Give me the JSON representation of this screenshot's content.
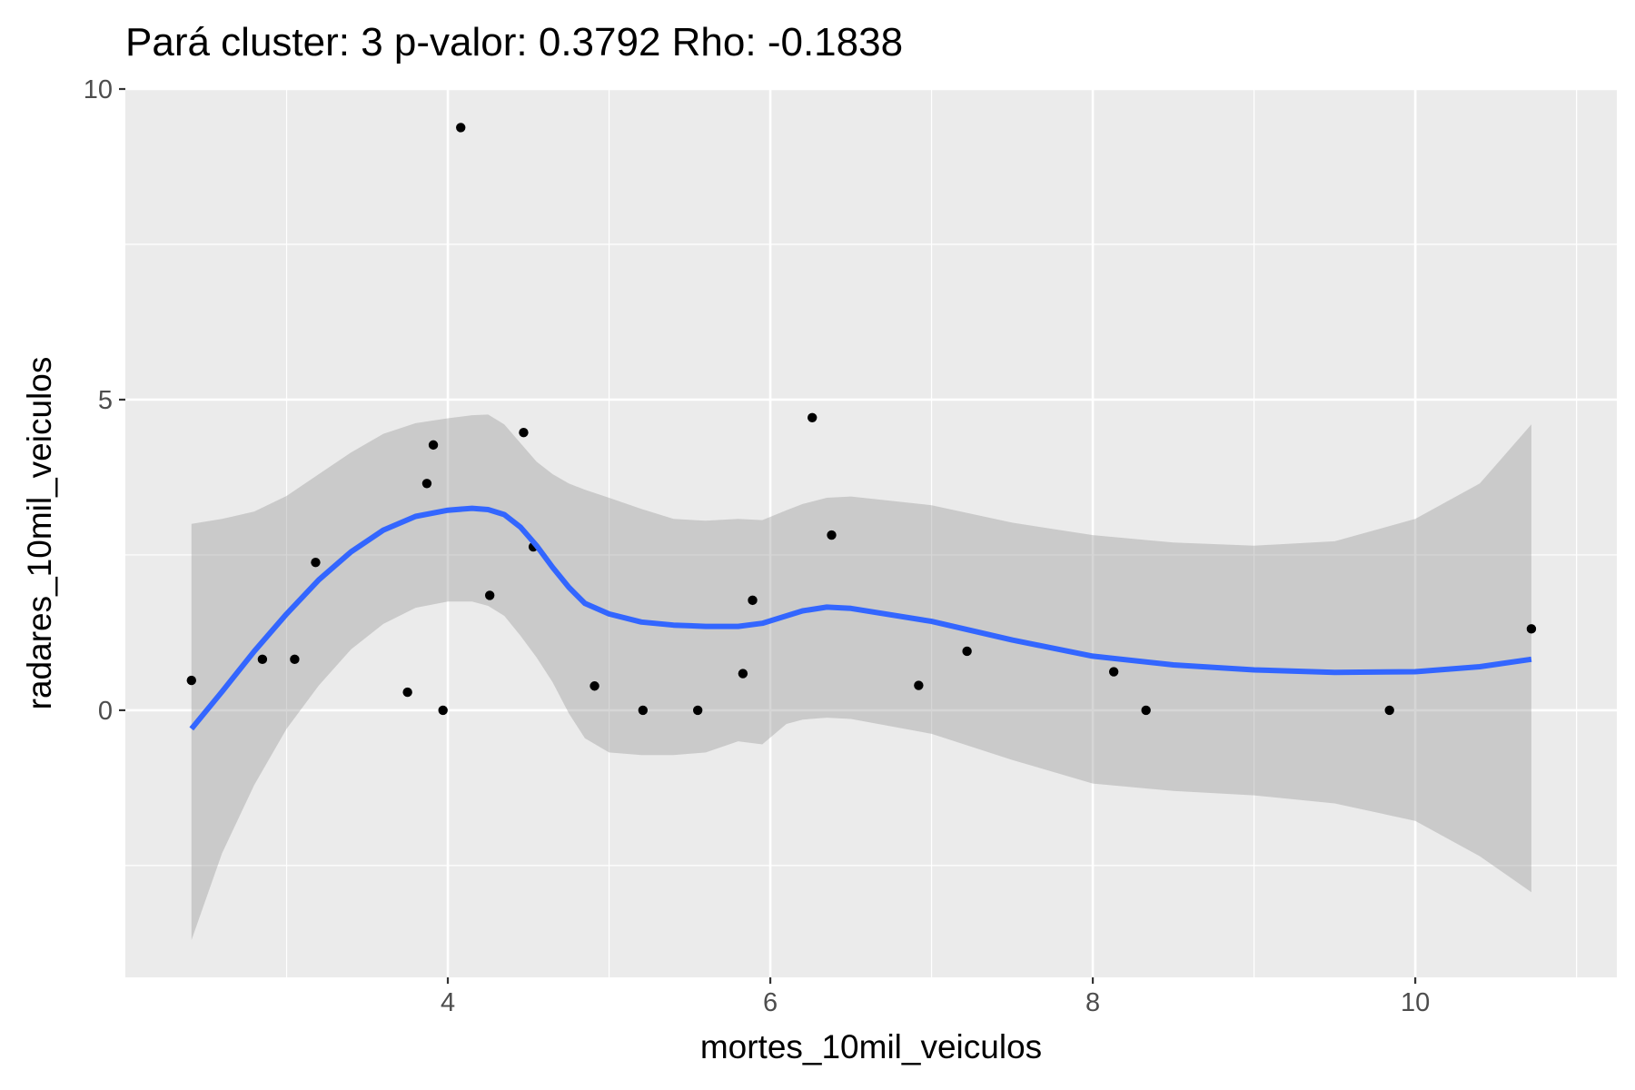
{
  "chart_data": {
    "type": "scatter",
    "title": "Pará cluster: 3 p-valor: 0.3792 Rho: -0.1838",
    "xlabel": "mortes_10mil_veiculos",
    "ylabel": "radares_10mil_veiculos",
    "xlim": [
      2.0,
      11.25
    ],
    "ylim": [
      -4.3,
      10.0
    ],
    "x_ticks": [
      4,
      6,
      8,
      10
    ],
    "y_ticks": [
      0,
      5,
      10
    ],
    "x_tick_labels": [
      "4",
      "6",
      "8",
      "10"
    ],
    "y_tick_labels": [
      "0",
      "5",
      "10"
    ],
    "grid": true,
    "colors": {
      "panel": "#ebebeb",
      "grid": "#ffffff",
      "points": "#000000",
      "smooth": "#3366ff",
      "ribbon": "#999999"
    },
    "points": [
      {
        "x": 2.41,
        "y": 0.48
      },
      {
        "x": 2.85,
        "y": 0.82
      },
      {
        "x": 3.05,
        "y": 0.82
      },
      {
        "x": 3.18,
        "y": 2.38
      },
      {
        "x": 3.75,
        "y": 0.29
      },
      {
        "x": 3.87,
        "y": 3.65
      },
      {
        "x": 3.91,
        "y": 4.27
      },
      {
        "x": 3.97,
        "y": 0.0
      },
      {
        "x": 4.08,
        "y": 9.38
      },
      {
        "x": 4.26,
        "y": 1.85
      },
      {
        "x": 4.47,
        "y": 4.47
      },
      {
        "x": 4.53,
        "y": 2.63
      },
      {
        "x": 4.91,
        "y": 0.39
      },
      {
        "x": 5.21,
        "y": 0.0
      },
      {
        "x": 5.55,
        "y": 0.0
      },
      {
        "x": 5.83,
        "y": 0.59
      },
      {
        "x": 5.89,
        "y": 1.77
      },
      {
        "x": 6.26,
        "y": 4.71
      },
      {
        "x": 6.38,
        "y": 2.82
      },
      {
        "x": 6.92,
        "y": 0.4
      },
      {
        "x": 7.22,
        "y": 0.95
      },
      {
        "x": 8.13,
        "y": 0.62
      },
      {
        "x": 8.33,
        "y": 0.0
      },
      {
        "x": 9.84,
        "y": 0.0
      },
      {
        "x": 10.72,
        "y": 1.31
      }
    ],
    "smooth": {
      "x": [
        2.41,
        2.6,
        2.8,
        3.0,
        3.2,
        3.4,
        3.6,
        3.8,
        4.0,
        4.15,
        4.25,
        4.35,
        4.45,
        4.55,
        4.65,
        4.75,
        4.85,
        5.0,
        5.2,
        5.4,
        5.6,
        5.8,
        5.95,
        6.1,
        6.2,
        6.35,
        6.5,
        7.0,
        7.5,
        8.0,
        8.5,
        9.0,
        9.5,
        10.0,
        10.4,
        10.72
      ],
      "y": [
        -0.3,
        0.3,
        0.95,
        1.55,
        2.1,
        2.55,
        2.9,
        3.12,
        3.22,
        3.25,
        3.23,
        3.15,
        2.95,
        2.65,
        2.3,
        1.98,
        1.72,
        1.55,
        1.42,
        1.37,
        1.35,
        1.35,
        1.4,
        1.52,
        1.6,
        1.66,
        1.64,
        1.43,
        1.13,
        0.87,
        0.73,
        0.65,
        0.61,
        0.62,
        0.7,
        0.82
      ],
      "upper": [
        3.0,
        3.08,
        3.2,
        3.45,
        3.8,
        4.15,
        4.45,
        4.62,
        4.7,
        4.75,
        4.76,
        4.6,
        4.3,
        4.0,
        3.8,
        3.65,
        3.55,
        3.42,
        3.24,
        3.08,
        3.05,
        3.08,
        3.06,
        3.22,
        3.32,
        3.42,
        3.44,
        3.3,
        3.02,
        2.82,
        2.7,
        2.65,
        2.72,
        3.08,
        3.65,
        4.6
      ],
      "lower": [
        -3.7,
        -2.3,
        -1.2,
        -0.3,
        0.4,
        0.98,
        1.39,
        1.65,
        1.75,
        1.75,
        1.68,
        1.52,
        1.2,
        0.85,
        0.45,
        -0.05,
        -0.45,
        -0.68,
        -0.72,
        -0.72,
        -0.68,
        -0.5,
        -0.55,
        -0.22,
        -0.15,
        -0.12,
        -0.14,
        -0.38,
        -0.8,
        -1.18,
        -1.3,
        -1.37,
        -1.5,
        -1.78,
        -2.35,
        -2.93
      ]
    }
  }
}
